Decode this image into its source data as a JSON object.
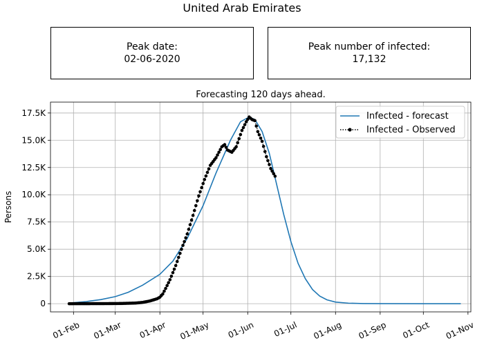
{
  "page": {
    "title": "United Arab Emirates",
    "peak_date_label": "Peak date:",
    "peak_date_value": "02-06-2020",
    "peak_infected_label": "Peak number of infected:",
    "peak_infected_value": "17,132"
  },
  "chart_data": {
    "type": "line",
    "title": "Forecasting 120 days ahead.",
    "xlabel": "",
    "ylabel": "Persons",
    "x_range": [
      "2020-01-16",
      "2020-11-03"
    ],
    "ylim": [
      -750,
      18500
    ],
    "grid": true,
    "legend_position": "top-right",
    "x_ticks": [
      {
        "date": "2020-02-01",
        "label": "01-Feb"
      },
      {
        "date": "2020-03-01",
        "label": "01-Mar"
      },
      {
        "date": "2020-04-01",
        "label": "01-Apr"
      },
      {
        "date": "2020-05-01",
        "label": "01-May"
      },
      {
        "date": "2020-06-01",
        "label": "01-Jun"
      },
      {
        "date": "2020-07-01",
        "label": "01-Jul"
      },
      {
        "date": "2020-08-01",
        "label": "01-Aug"
      },
      {
        "date": "2020-09-01",
        "label": "01-Sep"
      },
      {
        "date": "2020-10-01",
        "label": "01-Oct"
      },
      {
        "date": "2020-11-01",
        "label": "01-Nov"
      }
    ],
    "y_ticks": [
      {
        "value": 0,
        "label": "0"
      },
      {
        "value": 2500,
        "label": "2.5K"
      },
      {
        "value": 5000,
        "label": "5.0K"
      },
      {
        "value": 7500,
        "label": "7.5K"
      },
      {
        "value": 10000,
        "label": "10.0K"
      },
      {
        "value": 12500,
        "label": "12.5K"
      },
      {
        "value": 15000,
        "label": "15.0K"
      },
      {
        "value": 17500,
        "label": "17.5K"
      }
    ],
    "series": [
      {
        "name": "Infected - forecast",
        "color": "#1f77b4",
        "style": "line",
        "points": [
          [
            "2020-01-29",
            60
          ],
          [
            "2020-02-10",
            200
          ],
          [
            "2020-02-20",
            380
          ],
          [
            "2020-03-01",
            650
          ],
          [
            "2020-03-10",
            1050
          ],
          [
            "2020-03-20",
            1700
          ],
          [
            "2020-04-01",
            2700
          ],
          [
            "2020-04-10",
            3900
          ],
          [
            "2020-04-20",
            6000
          ],
          [
            "2020-05-01",
            9000
          ],
          [
            "2020-05-10",
            12000
          ],
          [
            "2020-05-20",
            15000
          ],
          [
            "2020-05-27",
            16700
          ],
          [
            "2020-06-02",
            17132
          ],
          [
            "2020-06-06",
            16900
          ],
          [
            "2020-06-11",
            15800
          ],
          [
            "2020-06-16",
            13800
          ],
          [
            "2020-06-21",
            11000
          ],
          [
            "2020-06-26",
            8200
          ],
          [
            "2020-07-01",
            5700
          ],
          [
            "2020-07-06",
            3700
          ],
          [
            "2020-07-11",
            2300
          ],
          [
            "2020-07-16",
            1300
          ],
          [
            "2020-07-21",
            700
          ],
          [
            "2020-07-26",
            360
          ],
          [
            "2020-08-01",
            150
          ],
          [
            "2020-08-10",
            50
          ],
          [
            "2020-08-20",
            15
          ],
          [
            "2020-09-01",
            3
          ],
          [
            "2020-10-01",
            0
          ],
          [
            "2020-10-27",
            0
          ]
        ]
      },
      {
        "name": "Infected - Observed",
        "color": "#000000",
        "style": "dotted-markers",
        "points": [
          [
            "2020-01-29",
            0
          ],
          [
            "2020-02-10",
            5
          ],
          [
            "2020-02-25",
            10
          ],
          [
            "2020-03-05",
            20
          ],
          [
            "2020-03-15",
            60
          ],
          [
            "2020-03-20",
            120
          ],
          [
            "2020-03-25",
            250
          ],
          [
            "2020-03-30",
            450
          ],
          [
            "2020-04-01",
            600
          ],
          [
            "2020-04-03",
            900
          ],
          [
            "2020-04-05",
            1400
          ],
          [
            "2020-04-08",
            2200
          ],
          [
            "2020-04-12",
            3500
          ],
          [
            "2020-04-16",
            5000
          ],
          [
            "2020-04-20",
            6400
          ],
          [
            "2020-04-24",
            8100
          ],
          [
            "2020-04-28",
            9900
          ],
          [
            "2020-05-02",
            11400
          ],
          [
            "2020-05-06",
            12700
          ],
          [
            "2020-05-10",
            13400
          ],
          [
            "2020-05-14",
            14400
          ],
          [
            "2020-05-16",
            14600
          ],
          [
            "2020-05-18",
            14100
          ],
          [
            "2020-05-21",
            13900
          ],
          [
            "2020-05-24",
            14400
          ],
          [
            "2020-05-28",
            15900
          ],
          [
            "2020-05-31",
            16700
          ],
          [
            "2020-06-02",
            17132
          ],
          [
            "2020-06-04",
            16900
          ],
          [
            "2020-06-06",
            16800
          ],
          [
            "2020-06-08",
            15800
          ],
          [
            "2020-06-11",
            14900
          ],
          [
            "2020-06-14",
            13500
          ],
          [
            "2020-06-17",
            12400
          ],
          [
            "2020-06-20",
            11700
          ]
        ]
      }
    ]
  }
}
